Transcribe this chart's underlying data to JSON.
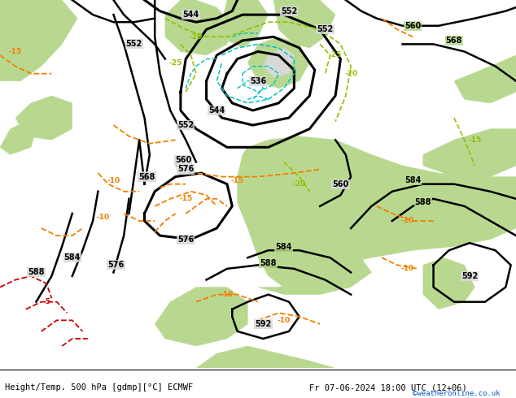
{
  "title_left": "Height/Temp. 500 hPa [gdmp][°C] ECMWF",
  "title_right": "Fr 07-06-2024 18:00 UTC (12+06)",
  "watermark": "©weatheronline.co.uk",
  "bg_sea_color": "#d8d8d8",
  "bg_land_green": "#b8d890",
  "bg_land_light": "#c8e8a0",
  "gray_coast": "#a8a8a8",
  "white": "#ffffff",
  "figsize": [
    6.34,
    4.9
  ],
  "dpi": 100
}
